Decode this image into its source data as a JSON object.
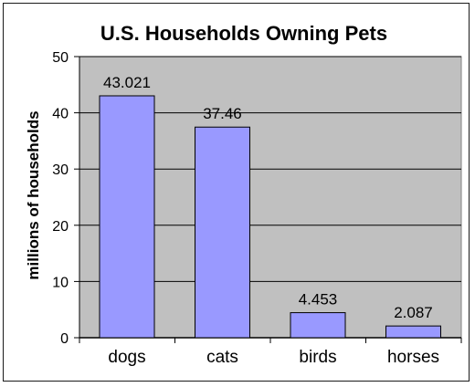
{
  "chart_data": {
    "type": "bar",
    "title": "U.S. Households Owning Pets",
    "xlabel": "",
    "ylabel": "millions of households",
    "categories": [
      "dogs",
      "cats",
      "birds",
      "horses"
    ],
    "values": [
      43.021,
      37.46,
      4.453,
      2.087
    ],
    "data_labels": [
      "43.021",
      "37.46",
      "4.453",
      "2.087"
    ],
    "ylim": [
      0,
      50
    ],
    "yticks": [
      0,
      10,
      20,
      30,
      40,
      50
    ],
    "grid": true,
    "legend": "none",
    "colors": {
      "bar_fill": "#9999ff",
      "bar_stroke": "#000000",
      "plot_background": "#c0c0c0",
      "gridline": "#000000"
    }
  }
}
